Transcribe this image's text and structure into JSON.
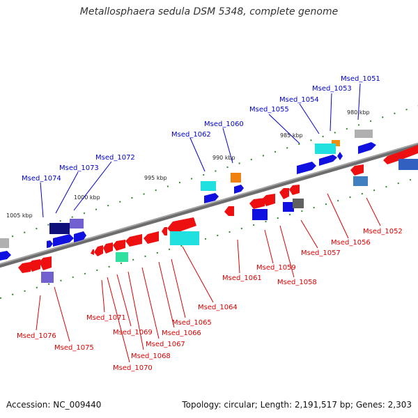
{
  "title": "Metallosphaera sedula DSM 5348, complete genome",
  "footer": {
    "accession": "Accession: NC_009440",
    "summary": "Topology: circular; Length: 2,191,517 bp; Genes: 2,303"
  },
  "kbp_ticks": [
    "980 kbp",
    "985 kbp",
    "990 kbp",
    "995 kbp",
    "1000 kbp",
    "1005 kbp"
  ],
  "top_genes": [
    "Msed_1051",
    "Msed_1053",
    "Msed_1054",
    "Msed_1055",
    "Msed_1060",
    "Msed_1062",
    "Msed_1072",
    "Msed_1073",
    "Msed_1074"
  ],
  "bottom_genes": [
    "Msed_1052",
    "Msed_1056",
    "Msed_1057",
    "Msed_1058",
    "Msed_1059",
    "Msed_1061",
    "Msed_1064",
    "Msed_1065",
    "Msed_1066",
    "Msed_1067",
    "Msed_1068",
    "Msed_1069",
    "Msed_1070",
    "Msed_1071",
    "Msed_1075",
    "Msed_1076"
  ],
  "colors": {
    "forward_label": "#0000cc",
    "reverse_label": "#dd0000",
    "backbone": "#777777",
    "tick": "#2a8a2a"
  }
}
